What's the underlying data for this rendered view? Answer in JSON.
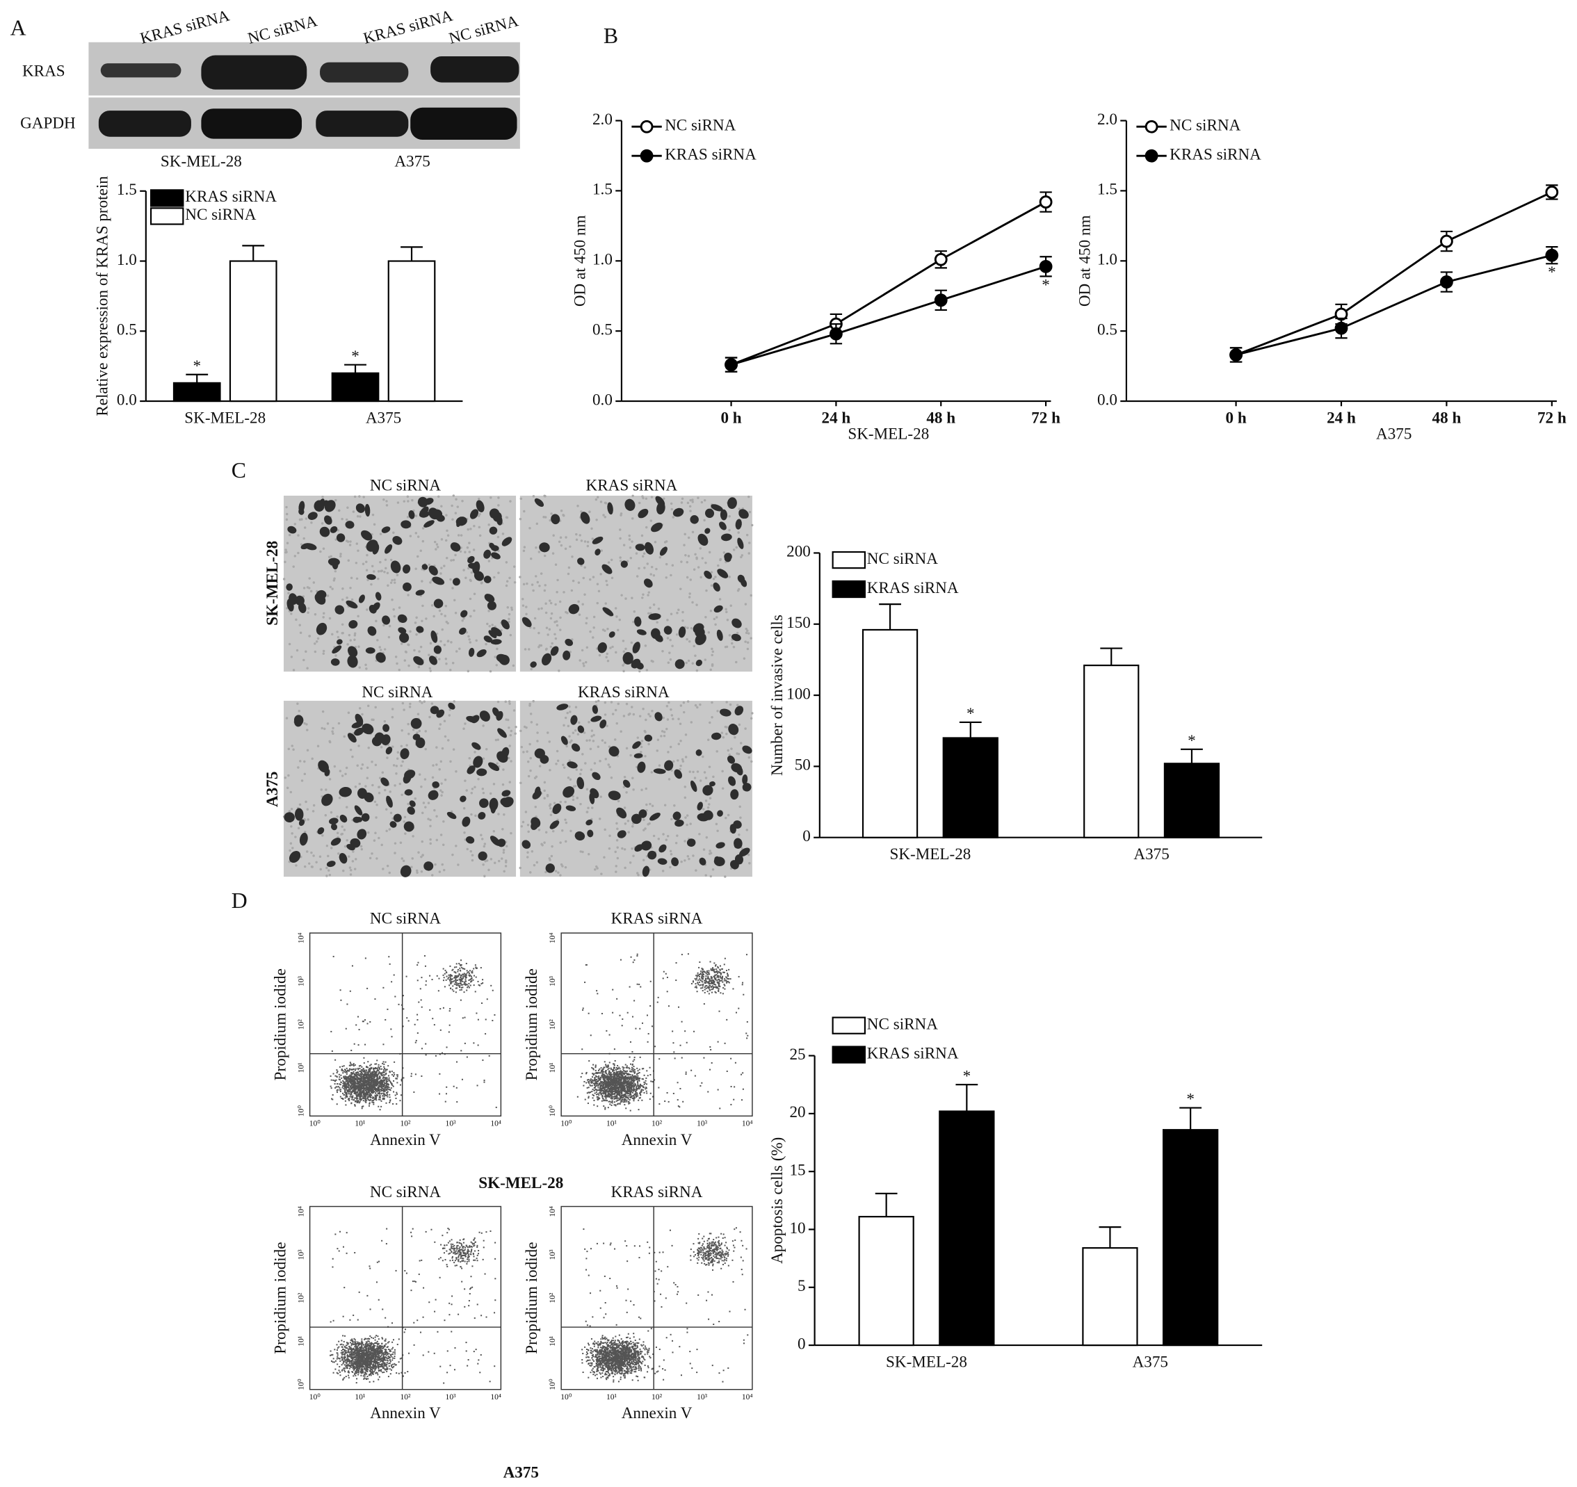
{
  "panel_labels": [
    "A",
    "B",
    "C",
    "D"
  ],
  "blot": {
    "lanes": [
      "KRAS siRNA",
      "NC siRNA",
      "KRAS siRNA",
      "NC siRNA"
    ],
    "proteins": [
      "KRAS",
      "GAPDH"
    ],
    "cell_lines": [
      "SK-MEL-28",
      "A375"
    ]
  },
  "invasion_images": {
    "column_titles": [
      [
        "NC siRNA",
        "KRAS siRNA"
      ],
      [
        "NC siRNA",
        "KRAS siRNA"
      ]
    ],
    "row_labels": [
      "SK-MEL-28",
      "A375"
    ]
  },
  "flow": {
    "titles": [
      "NC siRNA",
      "KRAS siRNA"
    ],
    "x_label": "Annexin V",
    "y_label": "Propidium iodide",
    "ticks": [
      "10⁰",
      "10¹",
      "10²",
      "10³",
      "10⁴"
    ],
    "groups": [
      "SK-MEL-28",
      "A375"
    ]
  },
  "chart_data": [
    {
      "type": "bar",
      "ylabel": "Relative expression of KRAS protein",
      "categories": [
        "SK-MEL-28",
        "A375"
      ],
      "series": [
        {
          "name": "KRAS siRNA",
          "color": "#000000",
          "values": [
            0.13,
            0.2
          ],
          "errors": [
            0.06,
            0.06
          ],
          "significance": [
            "*",
            "*"
          ]
        },
        {
          "name": "NC siRNA",
          "color": "#ffffff",
          "values": [
            1.0,
            1.0
          ],
          "errors": [
            0.11,
            0.1
          ],
          "significance": [
            null,
            null
          ]
        }
      ],
      "ylim": [
        0,
        1.5
      ],
      "yticks": [
        {
          "value": 0,
          "label": "0.0"
        },
        {
          "value": 0.5,
          "label": "0.5"
        },
        {
          "value": 1,
          "label": "1.0"
        },
        {
          "value": 1.5,
          "label": "1.5"
        }
      ],
      "legend": "upper left"
    },
    {
      "type": "line",
      "ylabel": "OD at 450 nm",
      "xlabel": "SK-MEL-28",
      "categories": [
        "0 h",
        "24 h",
        "48 h",
        "72 h"
      ],
      "series": [
        {
          "name": "NC siRNA",
          "color": "#000000",
          "marker": "open",
          "values": [
            0.26,
            0.55,
            1.01,
            1.42
          ],
          "errors": [
            0.05,
            0.07,
            0.06,
            0.07
          ],
          "significance": [
            null,
            null,
            null,
            null
          ]
        },
        {
          "name": "KRAS siRNA",
          "color": "#000000",
          "marker": "filled",
          "values": [
            0.26,
            0.48,
            0.72,
            0.96
          ],
          "errors": [
            0.05,
            0.07,
            0.07,
            0.07
          ],
          "significance": [
            null,
            null,
            null,
            "*"
          ]
        }
      ],
      "ylim": [
        0,
        2.0
      ],
      "yticks": [
        {
          "value": 0,
          "label": "0.0"
        },
        {
          "value": 0.5,
          "label": "0.5"
        },
        {
          "value": 1,
          "label": "1.0"
        },
        {
          "value": 1.5,
          "label": "1.5"
        },
        {
          "value": 2,
          "label": "2.0"
        }
      ],
      "legend": "upper left"
    },
    {
      "type": "line",
      "ylabel": "OD at 450 nm",
      "xlabel": "A375",
      "categories": [
        "0 h",
        "24 h",
        "48 h",
        "72 h"
      ],
      "series": [
        {
          "name": "NC siRNA",
          "color": "#000000",
          "marker": "open",
          "values": [
            0.33,
            0.62,
            1.14,
            1.49
          ],
          "errors": [
            0.05,
            0.07,
            0.07,
            0.05
          ],
          "significance": [
            null,
            null,
            null,
            null
          ]
        },
        {
          "name": "KRAS siRNA",
          "color": "#000000",
          "marker": "filled",
          "values": [
            0.33,
            0.52,
            0.85,
            1.04
          ],
          "errors": [
            0.05,
            0.07,
            0.07,
            0.06
          ],
          "significance": [
            null,
            null,
            null,
            "*"
          ]
        }
      ],
      "ylim": [
        0,
        2.0
      ],
      "yticks": [
        {
          "value": 0,
          "label": "0.0"
        },
        {
          "value": 0.5,
          "label": "0.5"
        },
        {
          "value": 1,
          "label": "1.0"
        },
        {
          "value": 1.5,
          "label": "1.5"
        },
        {
          "value": 2,
          "label": "2.0"
        }
      ],
      "legend": "upper left"
    },
    {
      "type": "bar",
      "ylabel": "Number of invasive cells",
      "categories": [
        "SK-MEL-28",
        "A375"
      ],
      "series": [
        {
          "name": "NC siRNA",
          "color": "#ffffff",
          "values": [
            146,
            121
          ],
          "errors": [
            18,
            12
          ],
          "significance": [
            null,
            null
          ]
        },
        {
          "name": "KRAS siRNA",
          "color": "#000000",
          "values": [
            70,
            52
          ],
          "errors": [
            11,
            10
          ],
          "significance": [
            "*",
            "*"
          ]
        }
      ],
      "ylim": [
        0,
        200
      ],
      "yticks": [
        0,
        50,
        100,
        150,
        200
      ],
      "legend": "upper left"
    },
    {
      "type": "bar",
      "ylabel": "Apoptosis cells (%)",
      "categories": [
        "SK-MEL-28",
        "A375"
      ],
      "series": [
        {
          "name": "NC siRNA",
          "color": "#ffffff",
          "values": [
            11.1,
            8.4
          ],
          "errors": [
            2.0,
            1.8
          ],
          "significance": [
            null,
            null
          ]
        },
        {
          "name": "KRAS siRNA",
          "color": "#000000",
          "values": [
            20.2,
            18.6
          ],
          "errors": [
            2.3,
            1.9
          ],
          "significance": [
            "*",
            "*"
          ]
        }
      ],
      "ylim": [
        0,
        25
      ],
      "yticks": [
        0,
        5,
        10,
        15,
        20,
        25
      ],
      "legend": "upper left"
    }
  ]
}
